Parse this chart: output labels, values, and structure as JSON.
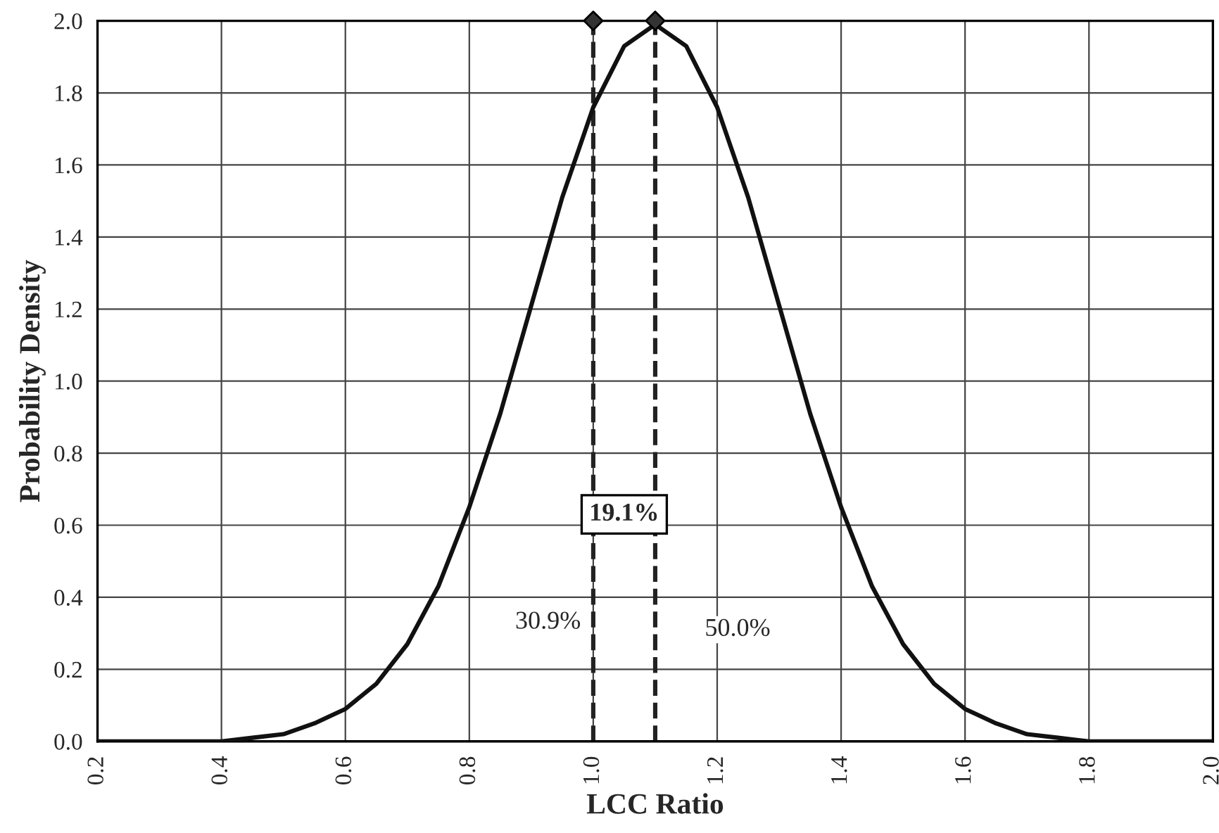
{
  "chart_data": {
    "type": "line",
    "xlabel": "LCC Ratio",
    "ylabel": "Probability Density",
    "xlim": [
      0.2,
      2.0
    ],
    "ylim": [
      0,
      2.0
    ],
    "xticks": [
      {
        "value": 0.2,
        "label": "0.2"
      },
      {
        "value": 0.4,
        "label": "0.4"
      },
      {
        "value": 0.6,
        "label": "0.6"
      },
      {
        "value": 0.8,
        "label": "0.8"
      },
      {
        "value": 1.0,
        "label": "1.0"
      },
      {
        "value": 1.2,
        "label": "1.2"
      },
      {
        "value": 1.4,
        "label": "1.4"
      },
      {
        "value": 1.6,
        "label": "1.6"
      },
      {
        "value": 1.8,
        "label": "1.8"
      },
      {
        "value": 2.0,
        "label": "2.0"
      }
    ],
    "yticks": [
      {
        "value": 0,
        "label": "0.0"
      },
      {
        "value": 0.2,
        "label": "0.2"
      },
      {
        "value": 0.4,
        "label": "0.4"
      },
      {
        "value": 0.6,
        "label": "0.6"
      },
      {
        "value": 0.8,
        "label": "0.8"
      },
      {
        "value": 1.0,
        "label": "1.0"
      },
      {
        "value": 1.2,
        "label": "1.2"
      },
      {
        "value": 1.4,
        "label": "1.4"
      },
      {
        "value": 1.6,
        "label": "1.6"
      },
      {
        "value": 1.8,
        "label": "1.8"
      },
      {
        "value": 2.0,
        "label": "2.0"
      }
    ],
    "grid": true,
    "line_style": "solid",
    "marker": "none",
    "series": [
      {
        "color": "#111111",
        "x": [
          0.2,
          0.25,
          0.3,
          0.35,
          0.4,
          0.45,
          0.5,
          0.55,
          0.6,
          0.65,
          0.7,
          0.75,
          0.8,
          0.85,
          0.9,
          0.95,
          1.0,
          1.05,
          1.1,
          1.15,
          1.2,
          1.25,
          1.3,
          1.35,
          1.4,
          1.45,
          1.5,
          1.55,
          1.6,
          1.65,
          1.7,
          1.75,
          1.8,
          1.85,
          1.9,
          1.95,
          2.0
        ],
        "values": [
          0,
          0,
          0,
          0,
          0,
          0.01,
          0.02,
          0.05,
          0.09,
          0.16,
          0.27,
          0.43,
          0.65,
          0.91,
          1.21,
          1.51,
          1.76,
          1.93,
          1.99,
          1.93,
          1.76,
          1.51,
          1.21,
          0.91,
          0.65,
          0.43,
          0.27,
          0.16,
          0.09,
          0.05,
          0.02,
          0.01,
          0,
          0,
          0,
          0,
          0
        ]
      },
      {
        "type": "scatter",
        "color": "#333333",
        "marker": "diamond",
        "x": [
          1.0,
          1.1
        ],
        "values": [
          2.0,
          2.0
        ]
      }
    ],
    "ref_lines": [
      {
        "axis": "x",
        "value": 1.0,
        "color": "#222222",
        "line_style": "dashed"
      },
      {
        "axis": "x",
        "value": 1.1,
        "color": "#222222",
        "line_style": "dashed"
      }
    ],
    "annotations": [
      "19.1%",
      "30.9%",
      "50.0%"
    ]
  }
}
